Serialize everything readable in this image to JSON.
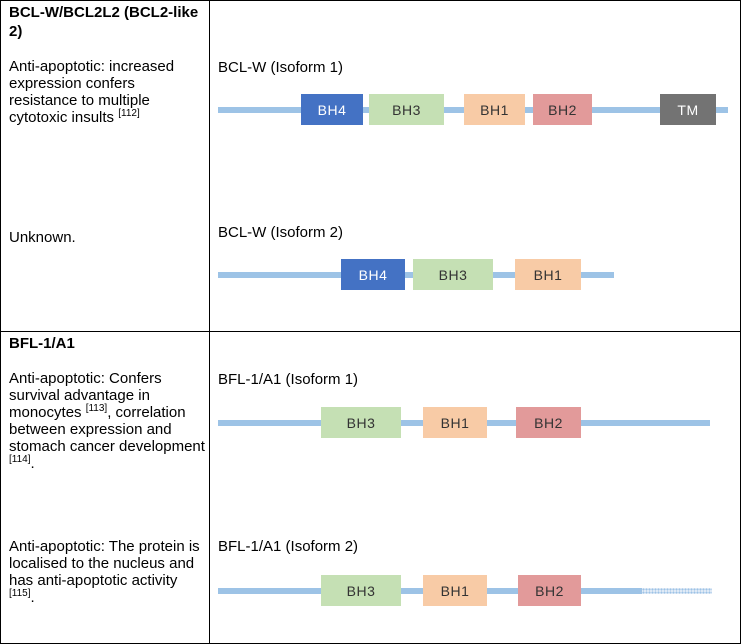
{
  "rows": [
    {
      "gene": "BCL-W/BCL2L2 (BCL2-like 2)",
      "isoforms": [
        {
          "desc": "Anti-apoptotic: increased expression confers resistance to multiple cytotoxic insults",
          "ref": "[112]",
          "suffix": "",
          "label": "BCL-W (Isoform 1)",
          "domains": [
            "BH4",
            "BH3",
            "BH1",
            "BH2",
            "TM"
          ]
        },
        {
          "desc": "Unknown.",
          "label": "BCL-W (Isoform 2)",
          "domains": [
            "BH4",
            "BH3",
            "BH1"
          ]
        }
      ]
    },
    {
      "gene": "BFL-1/A1",
      "isoforms": [
        {
          "desc_parts": [
            {
              "text": "Anti-apoptotic: Confers survival advantage in monocytes "
            },
            {
              "ref": "[113]"
            },
            {
              "text": ", correlation between expression and stomach cancer development "
            },
            {
              "ref": "[114]"
            },
            {
              "text": "."
            }
          ],
          "label": "BFL-1/A1 (Isoform 1)",
          "domains": [
            "BH3",
            "BH1",
            "BH2"
          ]
        },
        {
          "desc_parts": [
            {
              "text": "Anti-apoptotic: The protein is localised to the nucleus and has anti-apoptotic activity "
            },
            {
              "ref": "[115]"
            },
            {
              "text": "."
            }
          ],
          "label": "BFL-1/A1 (Isoform 2)",
          "domains": [
            "BH3",
            "BH1",
            "BH2"
          ]
        }
      ]
    }
  ],
  "colors": {
    "line": "#9dc3e6",
    "BH4": "#4472c4",
    "BH3": "#c5e0b4",
    "BH1": "#f8cba6",
    "BH2": "#e29a9a",
    "TM": "#737373"
  }
}
